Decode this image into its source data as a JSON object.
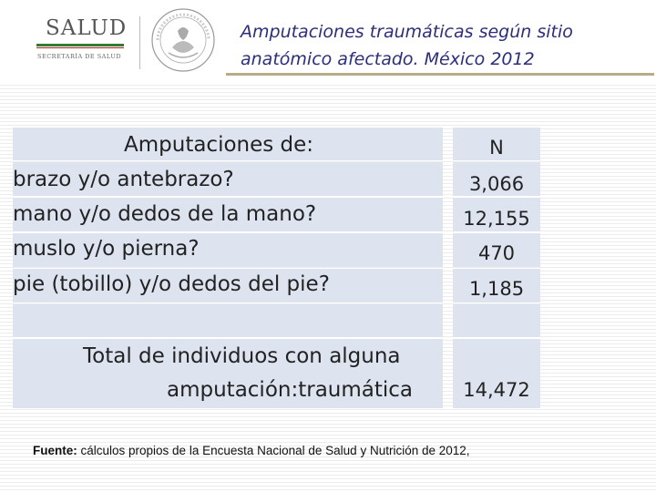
{
  "header": {
    "logo_word": "SALUD",
    "logo_sub": "SECRETARÍA DE SALUD",
    "title_line1": "Amputaciones traumáticas según sitio",
    "title_line2": "anatómico afectado. México 2012"
  },
  "table": {
    "header_label": "Amputaciones de:",
    "header_n": "N",
    "rows": [
      {
        "label": "brazo y/o antebrazo?",
        "n": "3,066"
      },
      {
        "label": "mano y/o dedos de la mano?",
        "n": "12,155"
      },
      {
        "label": "muslo y/o pierna?",
        "n": "470"
      },
      {
        "label": "pie (tobillo) y/o dedos del pie?",
        "n": "1,185"
      }
    ],
    "total_line1": "Total de individuos con alguna",
    "total_line2": "amputación:traumática",
    "total_n": "14,472"
  },
  "footnote": {
    "bold": "Fuente:",
    "text": " cálculos propios de la Encuesta Nacional de Salud y Nutrición de 2012,"
  }
}
